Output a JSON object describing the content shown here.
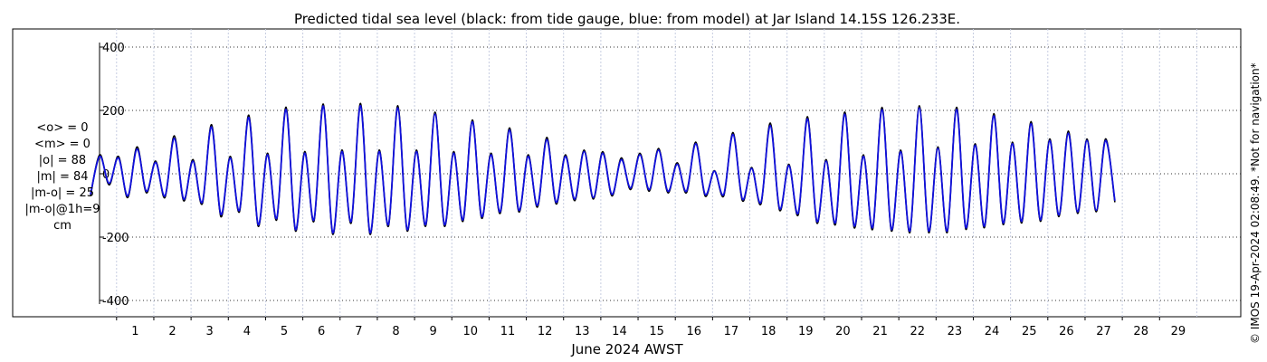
{
  "chart_data": {
    "type": "line",
    "title": "Predicted tidal sea level (black: from tide gauge, blue: from model) at Jar Island 14.15S 126.233E.",
    "xlabel": "June 2024 AWST",
    "ylabel": "",
    "ylim": [
      -430,
      430
    ],
    "xlim": [
      0.3,
      30.5
    ],
    "yticks": [
      400,
      200,
      0,
      -200,
      -400
    ],
    "xtick_labels": [
      "1",
      "2",
      "3",
      "4",
      "5",
      "6",
      "7",
      "8",
      "9",
      "10",
      "11",
      "12",
      "13",
      "14",
      "15",
      "16",
      "17",
      "18",
      "19",
      "20",
      "21",
      "22",
      "23",
      "24",
      "25",
      "26",
      "27",
      "28",
      "29"
    ],
    "grid": true,
    "series": [
      {
        "name": "black: from tide gauge",
        "color": "#000000",
        "x_start": 0.3,
        "x_step": 0.25,
        "values": [
          -70,
          60,
          -35,
          55,
          -75,
          85,
          -60,
          40,
          -75,
          120,
          -85,
          45,
          -95,
          155,
          -135,
          55,
          -120,
          185,
          -165,
          65,
          -145,
          210,
          -180,
          70,
          -150,
          220,
          -190,
          75,
          -155,
          222,
          -190,
          75,
          -165,
          215,
          -180,
          75,
          -165,
          195,
          -165,
          70,
          -150,
          170,
          -140,
          65,
          -125,
          145,
          -120,
          60,
          -105,
          115,
          -95,
          60,
          -85,
          75,
          -80,
          70,
          -70,
          50,
          -50,
          65,
          -55,
          80,
          -60,
          35,
          -60,
          100,
          -70,
          10,
          -70,
          130,
          -85,
          20,
          -95,
          160,
          -115,
          30,
          -130,
          180,
          -155,
          45,
          -160,
          195,
          -170,
          60,
          -175,
          210,
          -180,
          75,
          -185,
          215,
          -185,
          85,
          -185,
          210,
          -175,
          95,
          -170,
          190,
          -160,
          100,
          -155,
          165,
          -150,
          110,
          -135,
          135,
          -125,
          110,
          -120,
          110,
          -90
        ]
      },
      {
        "name": "blue: from model",
        "color": "#1010dd",
        "x_start": 0.3,
        "x_step": 0.25,
        "values": [
          -65,
          55,
          -30,
          50,
          -70,
          78,
          -55,
          36,
          -70,
          112,
          -80,
          40,
          -90,
          148,
          -128,
          50,
          -115,
          178,
          -160,
          60,
          -140,
          203,
          -175,
          65,
          -145,
          214,
          -185,
          70,
          -150,
          215,
          -185,
          70,
          -160,
          208,
          -175,
          70,
          -160,
          188,
          -160,
          65,
          -145,
          164,
          -135,
          60,
          -120,
          138,
          -115,
          55,
          -100,
          108,
          -90,
          55,
          -80,
          70,
          -75,
          65,
          -65,
          45,
          -45,
          60,
          -50,
          75,
          -55,
          30,
          -55,
          95,
          -65,
          8,
          -65,
          124,
          -80,
          17,
          -90,
          152,
          -110,
          26,
          -124,
          173,
          -150,
          40,
          -154,
          188,
          -164,
          55,
          -169,
          203,
          -175,
          70,
          -180,
          208,
          -180,
          80,
          -180,
          203,
          -170,
          90,
          -165,
          183,
          -155,
          95,
          -150,
          158,
          -145,
          105,
          -130,
          128,
          -120,
          105,
          -115,
          105,
          -85
        ]
      }
    ],
    "annotations": {
      "stats": [
        "<o> = 0",
        "<m> = 0",
        "|o| = 88",
        "|m| = 84",
        "|m-o| = 25",
        "|m-o|@1h=9",
        "cm"
      ],
      "credit": "© IMOS 19-Apr-2024 02:08:49. *Not for navigation*"
    }
  }
}
